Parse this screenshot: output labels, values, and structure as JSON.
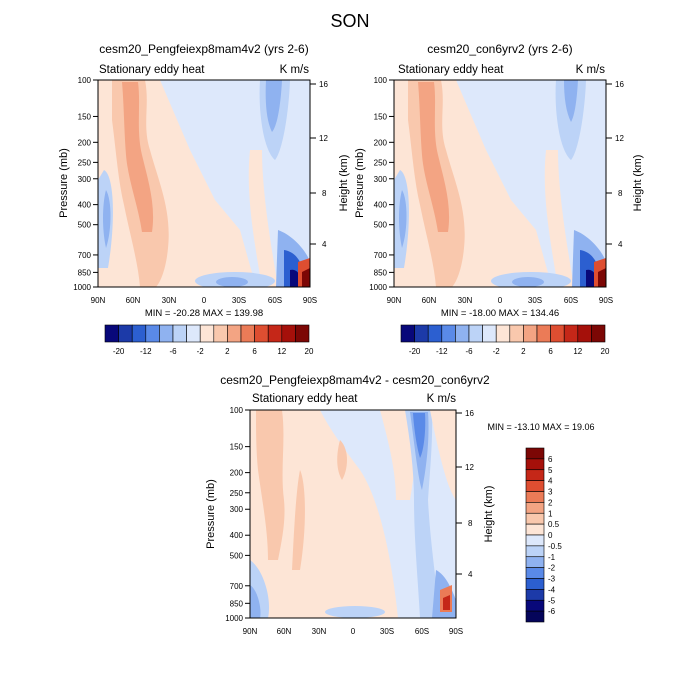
{
  "page_title": "SON",
  "chart_data": [
    {
      "type": "heatmap",
      "title": "cesm20_Pengfeiexp8mam4v2 (yrs 2-6)",
      "subtitle_left": "Stationary eddy heat",
      "units": "K m/s",
      "ylabel": "Pressure (mb)",
      "ylabel_right": "Height (km)",
      "x_ticks": [
        "90N",
        "60N",
        "30N",
        "0",
        "30S",
        "60S",
        "90S"
      ],
      "y_ticks": [
        100,
        150,
        200,
        250,
        300,
        400,
        500,
        700,
        850,
        1000
      ],
      "y_tick_labels": [
        "100",
        "150",
        "200",
        "250",
        "300",
        "400",
        "500",
        "700",
        "850",
        "1000"
      ],
      "height_ticks": [
        "4",
        "8",
        "12",
        "16"
      ],
      "stats": "MIN = -20.28   MAX = 139.98",
      "colorbar_labels": [
        "-20",
        "-12",
        "-6",
        "-2",
        "2",
        "6",
        "12",
        "20"
      ]
    },
    {
      "type": "heatmap",
      "title": "cesm20_con6yrv2 (yrs 2-6)",
      "subtitle_left": "Stationary eddy heat",
      "units": "K m/s",
      "ylabel": "Pressure (mb)",
      "ylabel_right": "Height (km)",
      "x_ticks": [
        "90N",
        "60N",
        "30N",
        "0",
        "30S",
        "60S",
        "90S"
      ],
      "y_ticks": [
        100,
        150,
        200,
        250,
        300,
        400,
        500,
        700,
        850,
        1000
      ],
      "y_tick_labels": [
        "100",
        "150",
        "200",
        "250",
        "300",
        "400",
        "500",
        "700",
        "850",
        "1000"
      ],
      "height_ticks": [
        "4",
        "8",
        "12",
        "16"
      ],
      "stats": "MIN = -18.00   MAX = 134.46",
      "colorbar_labels": [
        "-20",
        "-12",
        "-6",
        "-2",
        "2",
        "6",
        "12",
        "20"
      ]
    },
    {
      "type": "heatmap",
      "title": "cesm20_Pengfeiexp8mam4v2 - cesm20_con6yrv2",
      "subtitle_left": "Stationary eddy heat",
      "units": "K m/s",
      "ylabel": "Pressure (mb)",
      "ylabel_right": "Height (km)",
      "x_ticks": [
        "90N",
        "60N",
        "30N",
        "0",
        "30S",
        "60S",
        "90S"
      ],
      "y_ticks": [
        100,
        150,
        200,
        250,
        300,
        400,
        500,
        700,
        850,
        1000
      ],
      "y_tick_labels": [
        "100",
        "150",
        "200",
        "250",
        "300",
        "400",
        "500",
        "700",
        "850",
        "1000"
      ],
      "height_ticks": [
        "4",
        "8",
        "12",
        "16"
      ],
      "stats": "MIN = -13.10   MAX =  19.06",
      "colorbar_labels": [
        "6",
        "5",
        "4",
        "3",
        "2",
        "1",
        "0.5",
        "0",
        "-0.5",
        "-1",
        "-2",
        "-3",
        "-4",
        "-5",
        "-6"
      ]
    }
  ],
  "colors": {
    "horizontal_scale": [
      "#08087a",
      "#1c3aa8",
      "#2c5fd0",
      "#5a8ae8",
      "#8fb2f0",
      "#bcd3f7",
      "#dde8fb",
      "#fde5d6",
      "#f9c8ad",
      "#f3a483",
      "#eb7b57",
      "#de4e31",
      "#c52718",
      "#a5100a",
      "#7c0705"
    ],
    "vertical_scale": [
      "#7c0705",
      "#a5100a",
      "#c52718",
      "#de4e31",
      "#eb7b57",
      "#f3a483",
      "#f9c8ad",
      "#fde5d6",
      "#dde8fb",
      "#bcd3f7",
      "#8fb2f0",
      "#5a8ae8",
      "#2c5fd0",
      "#1c3aa8",
      "#08087a",
      "#05055a"
    ]
  }
}
